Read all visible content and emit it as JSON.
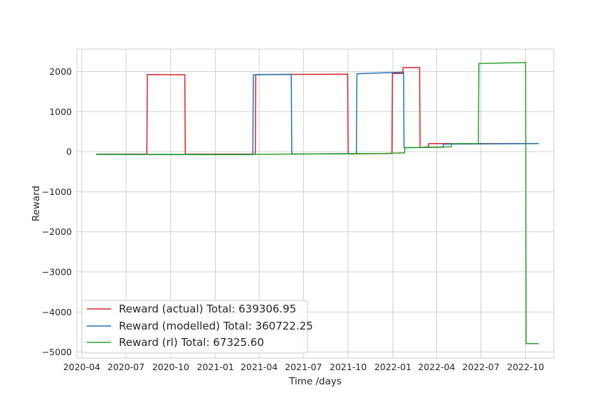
{
  "chart_data": {
    "type": "line",
    "title": "",
    "xlabel": "Time /days",
    "ylabel": "Reward",
    "xlim": [
      "2020-03-22",
      "2022-11-28"
    ],
    "ylim": [
      -5150,
      2560
    ],
    "grid": true,
    "legend_position": "bottom-left",
    "x_ticks": [
      "2020-04-01",
      "2020-07-01",
      "2020-10-01",
      "2021-01-01",
      "2021-04-01",
      "2021-07-01",
      "2021-10-01",
      "2022-01-01",
      "2022-04-01",
      "2022-07-01",
      "2022-10-01"
    ],
    "x_tick_labels": [
      "2020-04",
      "2020-07",
      "2020-10",
      "2021-01",
      "2021-04",
      "2021-07",
      "2021-10",
      "2022-01",
      "2022-04",
      "2022-07",
      "2022-10"
    ],
    "y_ticks": [
      2000,
      1000,
      0,
      -1000,
      -2000,
      -3000,
      -4000,
      -5000
    ],
    "y_tick_labels": [
      "2000",
      "1000",
      "0",
      "−1000",
      "−2000",
      "−3000",
      "−4000",
      "−5000"
    ],
    "series": [
      {
        "name": "Reward (actual) Total: 639306.95",
        "color": "#d62728",
        "points": [
          [
            "2020-05-01",
            -60
          ],
          [
            "2020-08-13",
            -60
          ],
          [
            "2020-08-14",
            1925
          ],
          [
            "2020-10-30",
            1920
          ],
          [
            "2020-10-31",
            -60
          ],
          [
            "2021-03-24",
            -60
          ],
          [
            "2021-03-25",
            1925
          ],
          [
            "2021-09-30",
            1935
          ],
          [
            "2021-10-01",
            -55
          ],
          [
            "2021-12-30",
            -45
          ],
          [
            "2021-12-31",
            1950
          ],
          [
            "2022-01-21",
            1950
          ],
          [
            "2022-01-22",
            2100
          ],
          [
            "2022-02-25",
            2100
          ],
          [
            "2022-02-26",
            100
          ],
          [
            "2022-03-15",
            120
          ],
          [
            "2022-03-16",
            200
          ],
          [
            "2022-10-28",
            205
          ]
        ]
      },
      {
        "name": "Reward (modelled) Total: 360722.25",
        "color": "#1f77b4",
        "points": [
          [
            "2020-05-01",
            -70
          ],
          [
            "2021-03-19",
            -75
          ],
          [
            "2021-03-20",
            1920
          ],
          [
            "2021-06-06",
            1930
          ],
          [
            "2021-06-07",
            -60
          ],
          [
            "2021-10-18",
            -50
          ],
          [
            "2021-10-19",
            1945
          ],
          [
            "2022-01-23",
            1985
          ],
          [
            "2022-01-24",
            100
          ],
          [
            "2022-04-14",
            110
          ],
          [
            "2022-04-15",
            190
          ],
          [
            "2022-10-28",
            200
          ]
        ]
      },
      {
        "name": "Reward (rl) Total: 67325.60",
        "color": "#2ca02c",
        "points": [
          [
            "2020-05-01",
            -65
          ],
          [
            "2021-01-15",
            -70
          ],
          [
            "2021-12-15",
            -45
          ],
          [
            "2022-01-25",
            -30
          ],
          [
            "2022-01-26",
            100
          ],
          [
            "2022-05-01",
            120
          ],
          [
            "2022-05-02",
            200
          ],
          [
            "2022-06-26",
            205
          ],
          [
            "2022-06-27",
            2200
          ],
          [
            "2022-10-01",
            2225
          ],
          [
            "2022-10-02",
            -4790
          ],
          [
            "2022-10-28",
            -4790
          ]
        ]
      }
    ]
  }
}
